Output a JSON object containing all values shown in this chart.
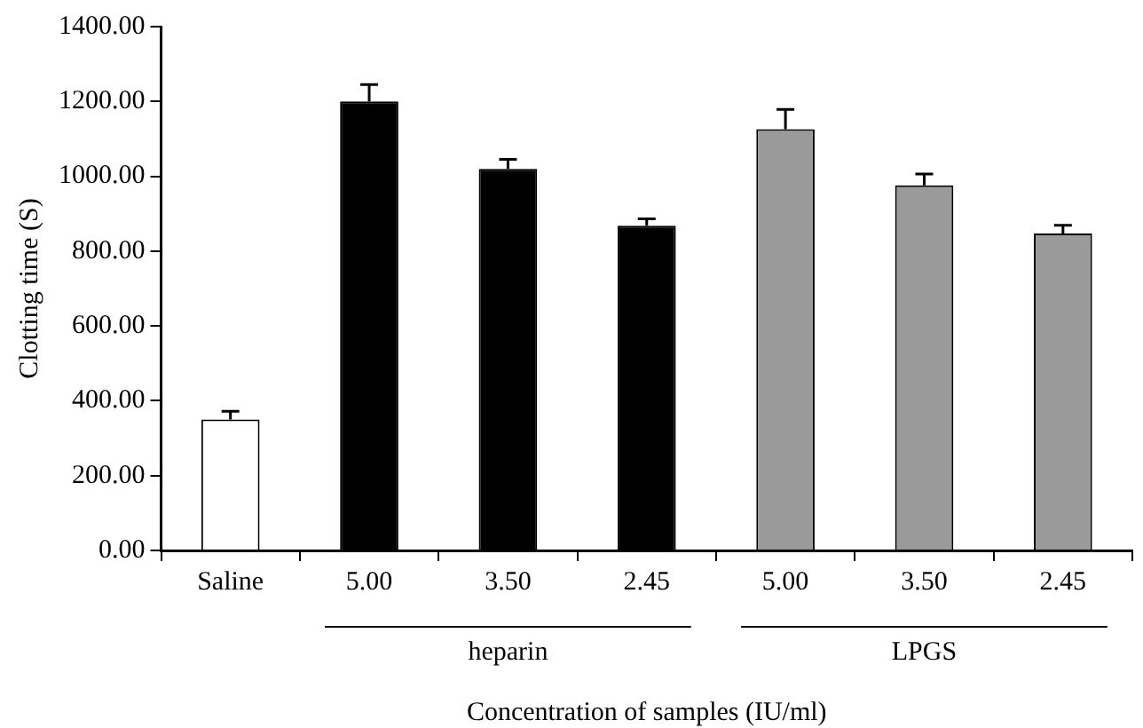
{
  "chart_data": {
    "type": "bar",
    "xlabel": "Concentration of samples (IU/ml)",
    "ylabel": "Clotting time (S)",
    "categories": [
      "Saline",
      "5.00",
      "3.50",
      "2.45",
      "5.00",
      "3.50",
      "2.45"
    ],
    "values": [
      350,
      1200,
      1020,
      868,
      1126,
      976,
      847
    ],
    "errors": [
      22,
      45,
      25,
      18,
      53,
      30,
      22
    ],
    "colors": [
      "#ffffff",
      "#000000",
      "#000000",
      "#000000",
      "#9a9a9a",
      "#9a9a9a",
      "#9a9a9a"
    ],
    "annotations": [
      "heparin",
      "LPGS"
    ],
    "ylim": [
      0,
      1400
    ],
    "yticks": [
      {
        "value": 0,
        "label": "0.00"
      },
      {
        "value": 200,
        "label": "200.00"
      },
      {
        "value": 400,
        "label": "400.00"
      },
      {
        "value": 600,
        "label": "600.00"
      },
      {
        "value": 800,
        "label": "800.00"
      },
      {
        "value": 1000,
        "label": "1000.00"
      },
      {
        "value": 1200,
        "label": "1200.00"
      },
      {
        "value": 1400,
        "label": "1400.00"
      }
    ],
    "grid": false,
    "legend": false
  }
}
